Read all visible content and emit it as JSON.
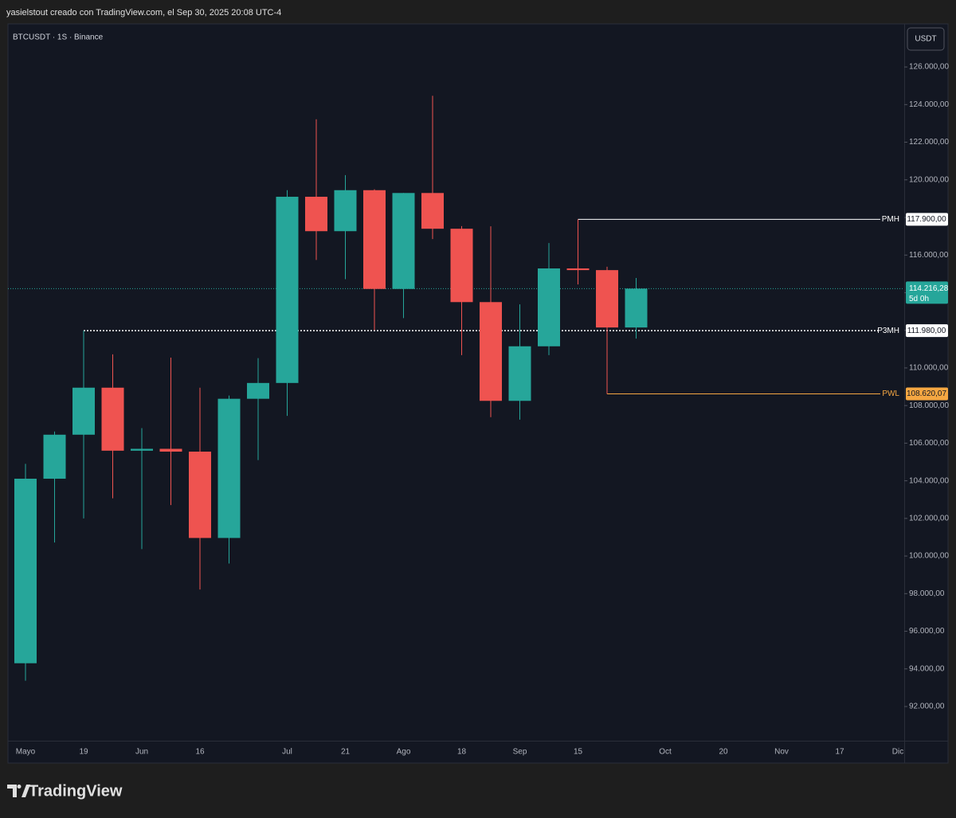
{
  "header": {
    "text": "yasielstout creado con TradingView.com, el Sep 30, 2025 20:08 UTC-4"
  },
  "chart_data": {
    "type": "candlestick",
    "symbol_label": "BTCUSDT · 1S · Binance",
    "currency": "USDT",
    "categories": [
      "Mayo",
      null,
      "19",
      null,
      "Jun",
      null,
      "16",
      null,
      null,
      "Jul",
      null,
      "21",
      null,
      "Ago",
      null,
      "18",
      null,
      "Sep",
      null,
      "15",
      null,
      null,
      "Oct",
      null,
      "20",
      null,
      "Nov",
      null,
      "17",
      null,
      "Dic"
    ],
    "open": [
      94300,
      104110,
      106450,
      108950,
      105600,
      105700,
      105550,
      100960,
      108360,
      109200,
      119100,
      117270,
      119450,
      114200,
      119300,
      117400,
      113500,
      108250,
      111150,
      115290,
      115200,
      112150,
      null,
      null,
      null,
      null,
      null,
      null,
      null,
      null,
      null
    ],
    "high": [
      104900,
      106620,
      111980,
      110720,
      106800,
      110550,
      108950,
      108530,
      110520,
      119450,
      123220,
      120250,
      119500,
      119300,
      124470,
      117540,
      117530,
      113380,
      116640,
      117900,
      115380,
      114780,
      null,
      null,
      null,
      null,
      null,
      null,
      null,
      null,
      null
    ],
    "low": [
      93370,
      100720,
      102000,
      103070,
      100370,
      102710,
      98220,
      99600,
      105100,
      107450,
      115740,
      114720,
      112000,
      112650,
      116850,
      110680,
      107380,
      107250,
      110680,
      114440,
      108620.07,
      111560,
      null,
      null,
      null,
      null,
      null,
      null,
      null,
      null,
      null
    ],
    "close": [
      104110,
      106450,
      108950,
      105600,
      105700,
      105550,
      100960,
      108360,
      109200,
      119100,
      117270,
      119450,
      114200,
      119300,
      117400,
      113500,
      108250,
      111150,
      115290,
      115200,
      112150,
      114216.28,
      null,
      null,
      null,
      null,
      null,
      null,
      null,
      null,
      null
    ],
    "up_color": "#26a69a",
    "down_color": "#ef5350",
    "ylim": [
      90180,
      128290
    ],
    "yticks": [
      {
        "value": 92000,
        "label": "92.000,00"
      },
      {
        "value": 94000,
        "label": "94.000,00"
      },
      {
        "value": 96000,
        "label": "96.000,00"
      },
      {
        "value": 98000,
        "label": "98.000,00"
      },
      {
        "value": 100000,
        "label": "100.000,00"
      },
      {
        "value": 102000,
        "label": "102.000,00"
      },
      {
        "value": 104000,
        "label": "104.000,00"
      },
      {
        "value": 106000,
        "label": "106.000,00"
      },
      {
        "value": 108000,
        "label": "108.000,00"
      },
      {
        "value": 110000,
        "label": "110.000,00"
      },
      {
        "value": 112000,
        "label": "112.000,00"
      },
      {
        "value": 114000,
        "label": "114.000,00"
      },
      {
        "value": 116000,
        "label": "116.000,00"
      },
      {
        "value": 118000,
        "label": "118.000,00"
      },
      {
        "value": 120000,
        "label": "120.000,00"
      },
      {
        "value": 122000,
        "label": "122.000,00"
      },
      {
        "value": 124000,
        "label": "124.000,00"
      },
      {
        "value": 126000,
        "label": "126.000,00"
      }
    ],
    "last_price_label": "114.216,28",
    "countdown": "5d 0h",
    "levels": [
      {
        "name": "PMH",
        "value": 117900,
        "label": "117.900,00",
        "color": "#ffffff",
        "style": "solid"
      },
      {
        "name": "P3MH",
        "value": 111980,
        "label": "111.980,00",
        "color": "#ffffff",
        "style": "dotted"
      },
      {
        "name": "PWL",
        "value": 108620.07,
        "label": "108.620,07",
        "color": "#f5a742",
        "style": "solid"
      }
    ]
  },
  "footer": {
    "brand": "TradingView"
  }
}
